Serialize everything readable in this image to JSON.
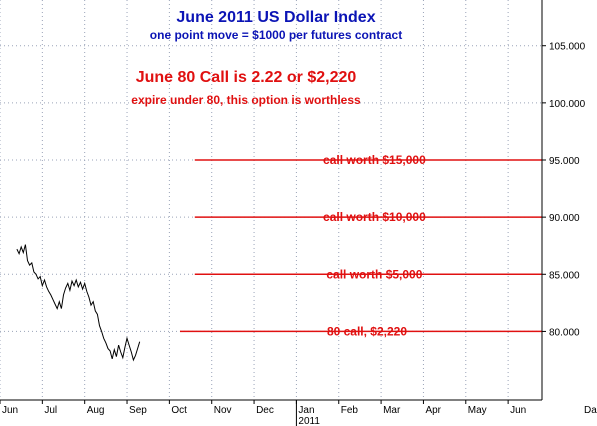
{
  "chart_data": {
    "type": "line",
    "title": "June 2011 US Dollar Index",
    "subtitle": "one point move = $1000 per futures contract",
    "headline": "June 80 Call is 2.22 or $2,220",
    "subheadline": "expire under 80, this option is worthless",
    "ylim": [
      74.0,
      109.0
    ],
    "y_ticks": [
      "80.000",
      "85.000",
      "90.000",
      "95.000",
      "100.000",
      "105.000"
    ],
    "y_tick_values": [
      80,
      85,
      90,
      95,
      100,
      105
    ],
    "x_months": [
      "Jun",
      "Jul",
      "Aug",
      "Sep",
      "Oct",
      "Nov",
      "Dec",
      "Jan",
      "Feb",
      "Mar",
      "Apr",
      "May",
      "Jun"
    ],
    "x_year_label": "2011",
    "x_right_label": "Da",
    "grid": true,
    "series": [
      {
        "values": [
          [
            0.4,
            87.2
          ],
          [
            0.45,
            86.8
          ],
          [
            0.5,
            87.4
          ],
          [
            0.55,
            86.9
          ],
          [
            0.6,
            87.6
          ],
          [
            0.65,
            86.2
          ],
          [
            0.7,
            85.8
          ],
          [
            0.75,
            86.0
          ],
          [
            0.8,
            85.2
          ],
          [
            0.85,
            85.0
          ],
          [
            0.9,
            84.6
          ],
          [
            0.95,
            84.8
          ],
          [
            1.0,
            84.0
          ],
          [
            1.05,
            84.5
          ],
          [
            1.1,
            83.9
          ],
          [
            1.15,
            83.5
          ],
          [
            1.2,
            83.2
          ],
          [
            1.25,
            82.8
          ],
          [
            1.3,
            82.4
          ],
          [
            1.35,
            82.0
          ],
          [
            1.4,
            82.6
          ],
          [
            1.45,
            82.0
          ],
          [
            1.5,
            83.2
          ],
          [
            1.55,
            83.8
          ],
          [
            1.6,
            84.2
          ],
          [
            1.65,
            83.6
          ],
          [
            1.7,
            84.4
          ],
          [
            1.75,
            84.0
          ],
          [
            1.8,
            84.5
          ],
          [
            1.85,
            83.9
          ],
          [
            1.9,
            84.3
          ],
          [
            1.95,
            83.7
          ],
          [
            2.0,
            84.2
          ],
          [
            2.05,
            83.5
          ],
          [
            2.1,
            83.0
          ],
          [
            2.15,
            82.3
          ],
          [
            2.2,
            82.6
          ],
          [
            2.25,
            81.8
          ],
          [
            2.3,
            81.5
          ],
          [
            2.35,
            80.5
          ],
          [
            2.4,
            80.0
          ],
          [
            2.45,
            79.4
          ],
          [
            2.5,
            79.0
          ],
          [
            2.55,
            78.5
          ],
          [
            2.6,
            78.3
          ],
          [
            2.65,
            77.6
          ],
          [
            2.7,
            78.4
          ],
          [
            2.75,
            77.8
          ],
          [
            2.8,
            78.8
          ],
          [
            2.85,
            78.2
          ],
          [
            2.9,
            77.7
          ],
          [
            2.95,
            78.6
          ],
          [
            3.0,
            79.4
          ],
          [
            3.05,
            78.8
          ],
          [
            3.1,
            78.2
          ],
          [
            3.15,
            77.5
          ],
          [
            3.2,
            77.9
          ],
          [
            3.25,
            78.5
          ],
          [
            3.3,
            79.1
          ]
        ]
      }
    ],
    "levels": [
      {
        "y": 95,
        "x_start": 4.6,
        "label": "call worth $15,000"
      },
      {
        "y": 90,
        "x_start": 4.6,
        "label": "call worth $10,000"
      },
      {
        "y": 85,
        "x_start": 4.6,
        "label": "call worth $5,000"
      },
      {
        "y": 80,
        "x_start": 4.25,
        "label": "80 call, $2,220"
      }
    ],
    "colors": {
      "price_line": "#000000",
      "level_line": "#e01010",
      "grid": "#9aa3b8",
      "title": "#0b14b5",
      "headline": "#e01010"
    }
  }
}
